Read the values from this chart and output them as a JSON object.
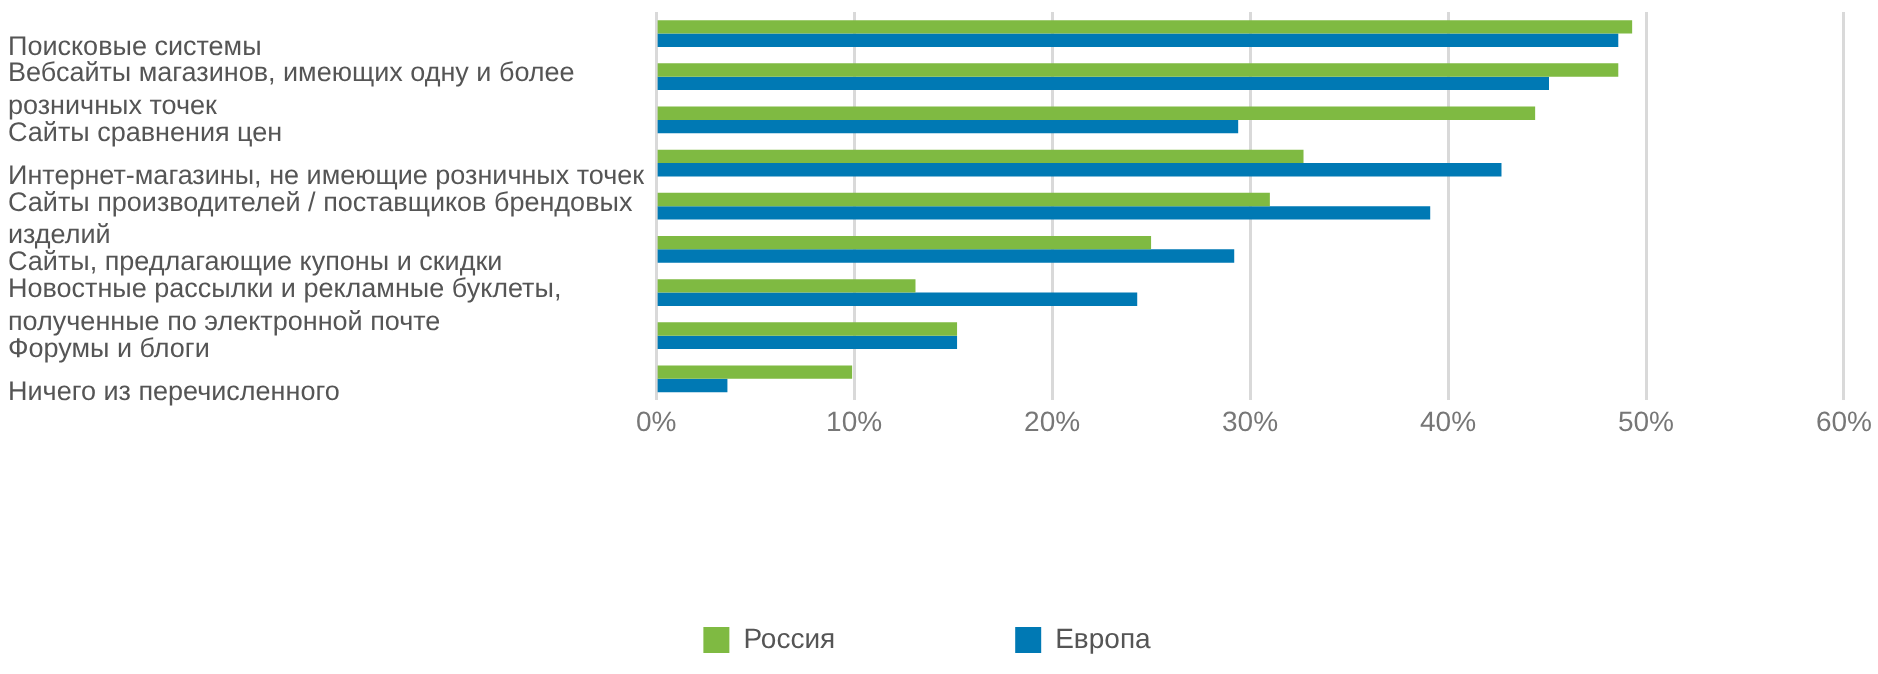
{
  "chart_data": {
    "type": "bar",
    "orientation": "horizontal",
    "categories": [
      "Поисковые системы",
      "Вебсайты магазинов, имеющих одну и более розничных точек",
      "Сайты сравнения цен",
      "Интернет-магазины, не имеющие розничных точек",
      "Сайты производителей / поставщиков брендовых изделий",
      "Сайты, предлагающие купоны и скидки",
      "Новостные рассылки и рекламные буклеты, полученные по электронной почте",
      "Форумы и блоги",
      "Ничего из перечисленного"
    ],
    "series": [
      {
        "name": "Россия",
        "color": "#7fba42",
        "values": [
          49.3,
          48.6,
          44.4,
          32.7,
          31.0,
          25.0,
          13.1,
          15.2,
          9.9
        ]
      },
      {
        "name": "Европа",
        "color": "#0079b4",
        "values": [
          48.6,
          45.1,
          29.4,
          42.7,
          39.1,
          29.2,
          24.3,
          15.2,
          3.6
        ]
      }
    ],
    "xlim": [
      0,
      60
    ],
    "xticks": [
      {
        "value": 0,
        "label": "0%"
      },
      {
        "value": 10,
        "label": "10%"
      },
      {
        "value": 20,
        "label": "20%"
      },
      {
        "value": 30,
        "label": "30%"
      },
      {
        "value": 40,
        "label": "40%"
      },
      {
        "value": 50,
        "label": "50%"
      },
      {
        "value": 60,
        "label": "60%"
      }
    ],
    "grid": "x",
    "legend": "bottom"
  }
}
